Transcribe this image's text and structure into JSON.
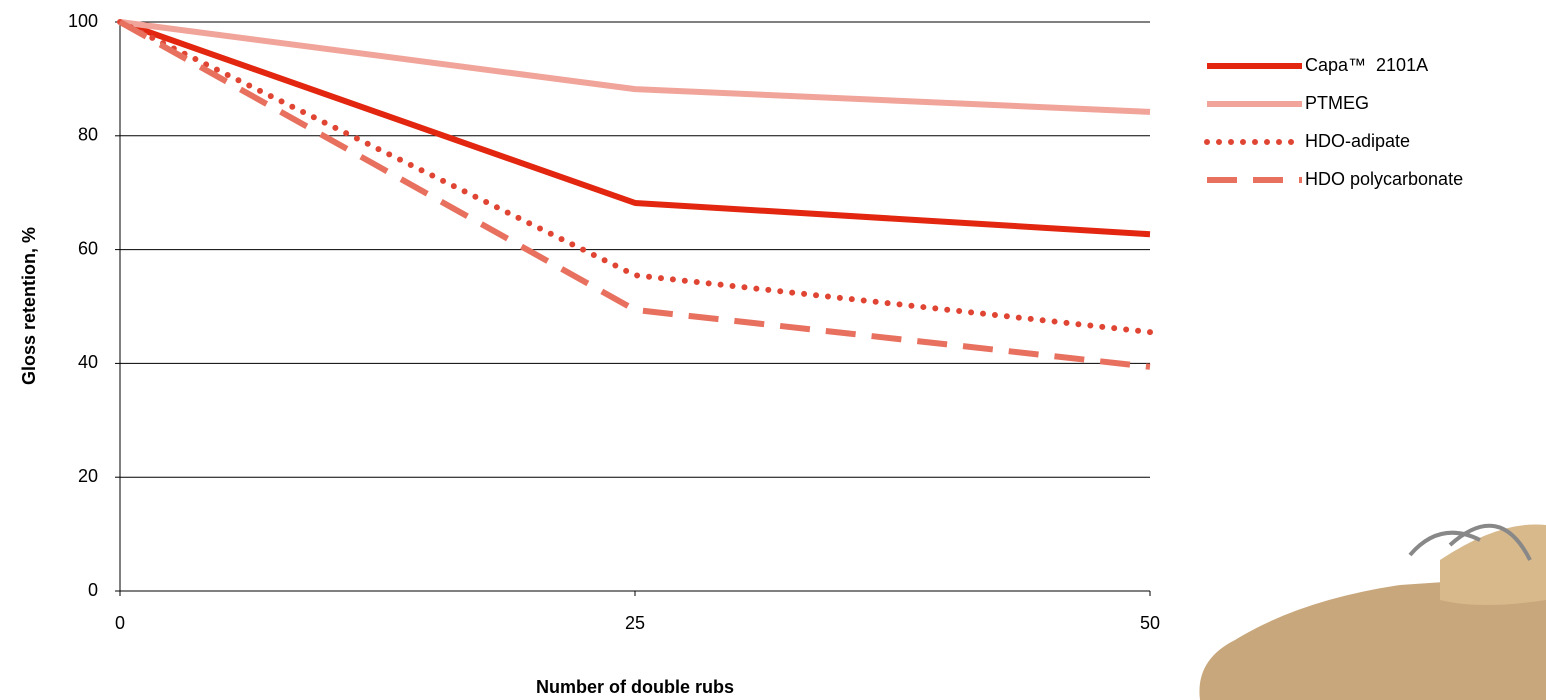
{
  "chart_data": {
    "type": "line",
    "x": [
      0,
      25,
      50
    ],
    "xlim": [
      0,
      50
    ],
    "xticks": [
      0,
      25,
      50
    ],
    "ylim": [
      0,
      100
    ],
    "yticks": [
      0,
      20,
      40,
      60,
      80,
      100
    ],
    "grid": true,
    "x_label": "Number of double rubs",
    "y_label": "Gloss retention, %",
    "legend": "right",
    "series": [
      {
        "name": "Capa™  2101A",
        "color": "#e2260f",
        "style": "solid",
        "values": [
          100,
          68.2,
          62.7
        ]
      },
      {
        "name": "PTMEG",
        "color": "#f1a49a",
        "style": "solid",
        "values": [
          100,
          88.2,
          84.2
        ]
      },
      {
        "name": "HDO-adipate",
        "color": "#e04433",
        "style": "dotted",
        "values": [
          100,
          55.5,
          45.5
        ]
      },
      {
        "name": "HDO polycarbonate",
        "color": "#e8705f",
        "style": "dashed",
        "values": [
          100,
          49.4,
          39.4
        ]
      }
    ]
  }
}
